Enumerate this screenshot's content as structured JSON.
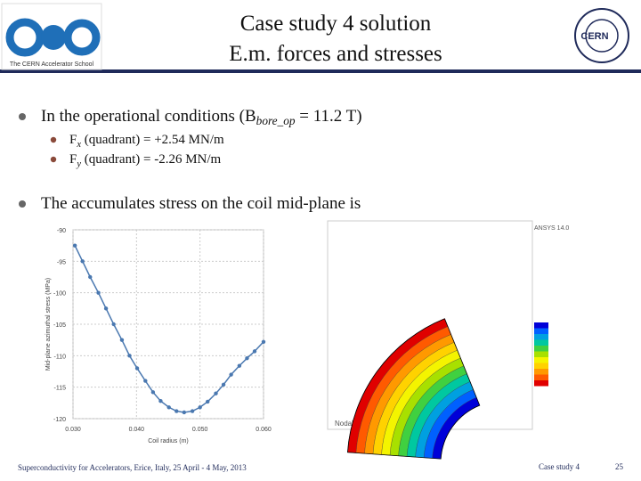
{
  "header": {
    "title_lines": [
      "Case study 4 solution",
      "E.m. forces and stresses"
    ],
    "logo_left_caption": "The CERN Accelerator School",
    "logo_right": "CERN"
  },
  "bullets": [
    {
      "text": "In the operational conditions (B",
      "sub": "bore_op",
      "tail": " = 11.2 T)",
      "items": [
        {
          "text": "F",
          "sub": "x",
          "tail": " (quadrant) = +2.54 MN/m"
        },
        {
          "text": "F",
          "sub": "y",
          "tail": " (quadrant) = -2.26 MN/m"
        }
      ]
    },
    {
      "text": "The accumulates stress on the coil mid-plane is",
      "items": []
    }
  ],
  "chart_data": {
    "type": "line",
    "xlabel": "Coil radius (m)",
    "ylabel": "Mid-plane azimuthal stress (MPa)",
    "x": [
      0.0303,
      0.0315,
      0.0327,
      0.034,
      0.0352,
      0.0364,
      0.0377,
      0.0389,
      0.0401,
      0.0414,
      0.0426,
      0.0438,
      0.0451,
      0.0463,
      0.0475,
      0.0488,
      0.05,
      0.0512,
      0.0525,
      0.0537,
      0.0549,
      0.0562,
      0.0574,
      0.0586,
      0.06
    ],
    "values": [
      -92.5,
      -95,
      -97.5,
      -100,
      -102.5,
      -105,
      -107.5,
      -110,
      -112,
      -114,
      -115.8,
      -117.2,
      -118.2,
      -118.8,
      -119,
      -118.8,
      -118.2,
      -117.3,
      -116,
      -114.6,
      -113,
      -111.6,
      -110.4,
      -109.3,
      -107.8
    ],
    "color": "#4a78b0",
    "xlim": [
      0.03,
      0.06
    ],
    "ylim": [
      -120,
      -90
    ],
    "xticks": [
      {
        "value": 0.03,
        "label": "0.030"
      },
      {
        "value": 0.04,
        "label": "0.040"
      },
      {
        "value": 0.05,
        "label": "0.050"
      },
      {
        "value": 0.06,
        "label": "0.060"
      }
    ],
    "yticks": [
      -90,
      -95,
      -100,
      -105,
      -110,
      -115,
      -120
    ],
    "grid": true
  },
  "fem_plot": {
    "software": "ANSYS 14.0",
    "caption": "Nodal field"
  },
  "footer": {
    "event": "Superconductivity for Accelerators, Erice, Italy, 25 April - 4 May, 2013",
    "section": "Case study 4",
    "page": "25"
  }
}
